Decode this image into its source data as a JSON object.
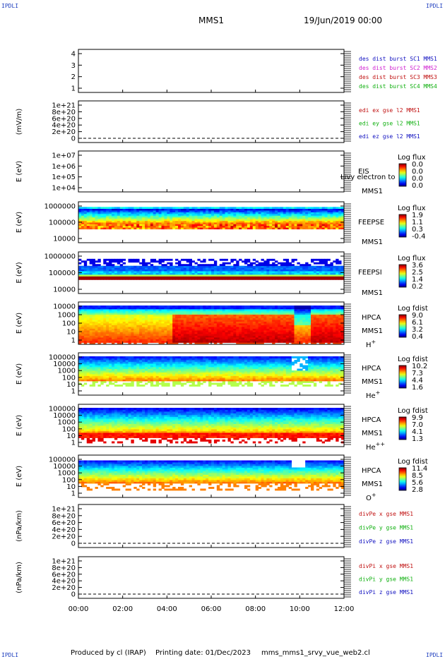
{
  "header": {
    "corner_left_top": "IPDLI",
    "corner_right_top": "IPDLI",
    "corner_left_bottom": "IPDLI",
    "corner_right_bottom": "IPDLI",
    "spacecraft": "MMS1",
    "date": "19/Jun/2019 00:00"
  },
  "footer": {
    "produced": "Produced by cl (IRAP)",
    "printing": "Printing date: 01/Dec/2023",
    "file": "mms_mms1_srvy_vue_web2.cl"
  },
  "chart_data": {
    "type": "heatmap",
    "x_ticks": [
      "00:00",
      "02:00",
      "04:00",
      "06:00",
      "08:00",
      "10:00",
      "12:00"
    ],
    "x_range_hours": [
      0,
      12
    ],
    "panels": [
      {
        "id": "des-dist",
        "kind": "lines",
        "ylabel": "",
        "yticks": [
          "4",
          "3",
          "2",
          "1"
        ],
        "legend": [
          {
            "text": "des dist burst SC1 MMS1",
            "color": "#1010c0"
          },
          {
            "text": "des dist burst SC2 MMS2",
            "color": "#d020d0"
          },
          {
            "text": "des dist burst SC3 MMS3",
            "color": "#c01010"
          },
          {
            "text": "des dist burst SC4 MMS4",
            "color": "#10b010"
          }
        ]
      },
      {
        "id": "edi-e",
        "kind": "lines",
        "ylabel": "(mV/m)",
        "yticks": [
          "1e+21",
          "8e+20",
          "6e+20",
          "4e+20",
          "2e+20",
          "0"
        ],
        "legend": [
          {
            "text": "edi ex gse l2 MMS1",
            "color": "#c01010"
          },
          {
            "text": "edi ey gse l2 MMS1",
            "color": "#10b010"
          },
          {
            "text": "edi ez gse l2 MMS1",
            "color": "#1010c0"
          }
        ]
      },
      {
        "id": "eis",
        "kind": "empty",
        "ylabel": "E (eV)",
        "yticks": [
          "1e+07",
          "1e+06",
          "1e+05",
          "1e+04"
        ],
        "instrument": "EIS",
        "sc": "MMS1",
        "note": "Livy electron to",
        "cbar_title": "Log flux",
        "cbar_ticks": [
          "0.0",
          "0.0",
          "0.0",
          "0.0"
        ]
      },
      {
        "id": "feeps-e",
        "kind": "spectro",
        "ylabel": "E (eV)",
        "yticks": [
          "1000000",
          "100000",
          "10000"
        ],
        "instrument": "FEEPSE",
        "sc": "MMS1",
        "cbar_title": "Log flux",
        "cbar_ticks": [
          "1.9",
          "1.1",
          "0.3",
          "-0.4"
        ]
      },
      {
        "id": "feeps-i",
        "kind": "spectro",
        "ylabel": "E (eV)",
        "yticks": [
          "1000000",
          "100000",
          "10000"
        ],
        "instrument": "FEEPSI",
        "sc": "MMS1",
        "cbar_title": "Log flux",
        "cbar_ticks": [
          "3.6",
          "2.5",
          "1.4",
          "0.2"
        ]
      },
      {
        "id": "hpca-h",
        "kind": "spectro",
        "ylabel": "E (eV)",
        "yticks": [
          "10000",
          "1000",
          "100",
          "10",
          "1"
        ],
        "instrument": "HPCA",
        "sc": "MMS1",
        "species": "H+",
        "cbar_title": "Log fdist",
        "cbar_ticks": [
          "9.0",
          "6.1",
          "3.2",
          "0.4"
        ]
      },
      {
        "id": "hpca-he",
        "kind": "spectro",
        "ylabel": "E (eV)",
        "yticks": [
          "100000",
          "10000",
          "1000",
          "100",
          "10",
          "1"
        ],
        "instrument": "HPCA",
        "sc": "MMS1",
        "species": "He+",
        "cbar_title": "Log fdist",
        "cbar_ticks": [
          "10.2",
          "7.3",
          "4.4",
          "1.6"
        ]
      },
      {
        "id": "hpca-he2",
        "kind": "spectro",
        "ylabel": "E (eV)",
        "yticks": [
          "100000",
          "10000",
          "1000",
          "100",
          "10",
          "1"
        ],
        "instrument": "HPCA",
        "sc": "MMS1",
        "species": "He++",
        "cbar_title": "Log fdist",
        "cbar_ticks": [
          "9.9",
          "7.0",
          "4.1",
          "1.3"
        ]
      },
      {
        "id": "hpca-o",
        "kind": "spectro",
        "ylabel": "E (eV)",
        "yticks": [
          "100000",
          "10000",
          "1000",
          "100",
          "10",
          "1"
        ],
        "instrument": "HPCA",
        "sc": "MMS1",
        "species": "O+",
        "cbar_title": "Log fdist",
        "cbar_ticks": [
          "11.4",
          "8.5",
          "5.6",
          "2.8"
        ]
      },
      {
        "id": "divpe",
        "kind": "lines",
        "ylabel": "(nPa/km)",
        "yticks": [
          "1e+21",
          "8e+20",
          "6e+20",
          "4e+20",
          "2e+20",
          "0"
        ],
        "legend": [
          {
            "text": "divPe x gse MMS1",
            "color": "#c01010"
          },
          {
            "text": "divPe y gse MMS1",
            "color": "#10b010"
          },
          {
            "text": "divPe z gse MMS1",
            "color": "#1010c0"
          }
        ]
      },
      {
        "id": "divpi",
        "kind": "lines",
        "ylabel": "(nPa/km)",
        "yticks": [
          "1e+21",
          "8e+20",
          "6e+20",
          "4e+20",
          "2e+20",
          "0"
        ],
        "legend": [
          {
            "text": "divPi x gse MMS1",
            "color": "#c01010"
          },
          {
            "text": "divPi y gse MMS1",
            "color": "#10b010"
          },
          {
            "text": "divPi z gse MMS1",
            "color": "#1010c0"
          }
        ]
      }
    ]
  }
}
